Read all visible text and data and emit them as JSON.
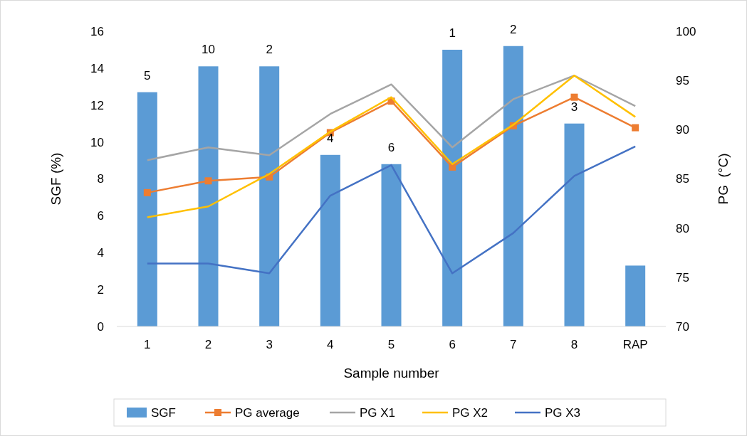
{
  "chart_data": {
    "type": "bar",
    "xlabel": "Sample number",
    "ylabel": "SGF (%)",
    "y2label": "PG  (°C)",
    "categories": [
      "1",
      "2",
      "3",
      "4",
      "5",
      "6",
      "7",
      "8",
      "RAP"
    ],
    "ylim": [
      0,
      16
    ],
    "yticks": [
      0,
      2,
      4,
      6,
      8,
      10,
      12,
      14,
      16
    ],
    "y2lim": [
      70,
      100
    ],
    "y2ticks": [
      70,
      75,
      80,
      85,
      90,
      95,
      100
    ],
    "legend": "bottom",
    "series": [
      {
        "name": "SGF",
        "color": "#5b9bd5",
        "values": [
          12.7,
          14.1,
          14.1,
          9.3,
          8.8,
          15.0,
          15.2,
          11.0,
          3.3
        ]
      },
      {
        "name": "PG average",
        "type": "line",
        "axis": "y2",
        "marker": "square",
        "color": "#ed7d31",
        "values": [
          83.6,
          84.8,
          85.2,
          89.7,
          92.9,
          86.2,
          90.4,
          93.3,
          90.2
        ]
      },
      {
        "name": "PG X1",
        "type": "line",
        "axis": "y2",
        "color": "#a5a5a5",
        "values": [
          86.9,
          88.2,
          87.4,
          91.6,
          94.6,
          88.2,
          93.1,
          95.5,
          92.4
        ]
      },
      {
        "name": "PG X2",
        "type": "line",
        "axis": "y2",
        "color": "#ffc000",
        "values": [
          81.1,
          82.2,
          85.5,
          89.8,
          93.3,
          86.5,
          90.5,
          95.5,
          91.3
        ]
      },
      {
        "name": "PG X3",
        "type": "line",
        "axis": "y2",
        "color": "#4472c4",
        "values": [
          76.4,
          76.4,
          75.4,
          83.3,
          86.4,
          75.4,
          79.5,
          85.3,
          88.3
        ]
      }
    ],
    "annotations": [
      {
        "text": "5",
        "x": "1",
        "y": 12.7
      },
      {
        "text": "10",
        "x": "2",
        "y": 14.1
      },
      {
        "text": "2",
        "x": "3",
        "y": 14.1
      },
      {
        "text": "4",
        "x": "4",
        "y": 9.3
      },
      {
        "text": "6",
        "x": "5",
        "y": 8.8
      },
      {
        "text": "1",
        "x": "6",
        "y": 15.0
      },
      {
        "text": "2",
        "x": "7",
        "y": 15.2
      },
      {
        "text": "3",
        "x": "8",
        "y": 11.0
      }
    ]
  }
}
